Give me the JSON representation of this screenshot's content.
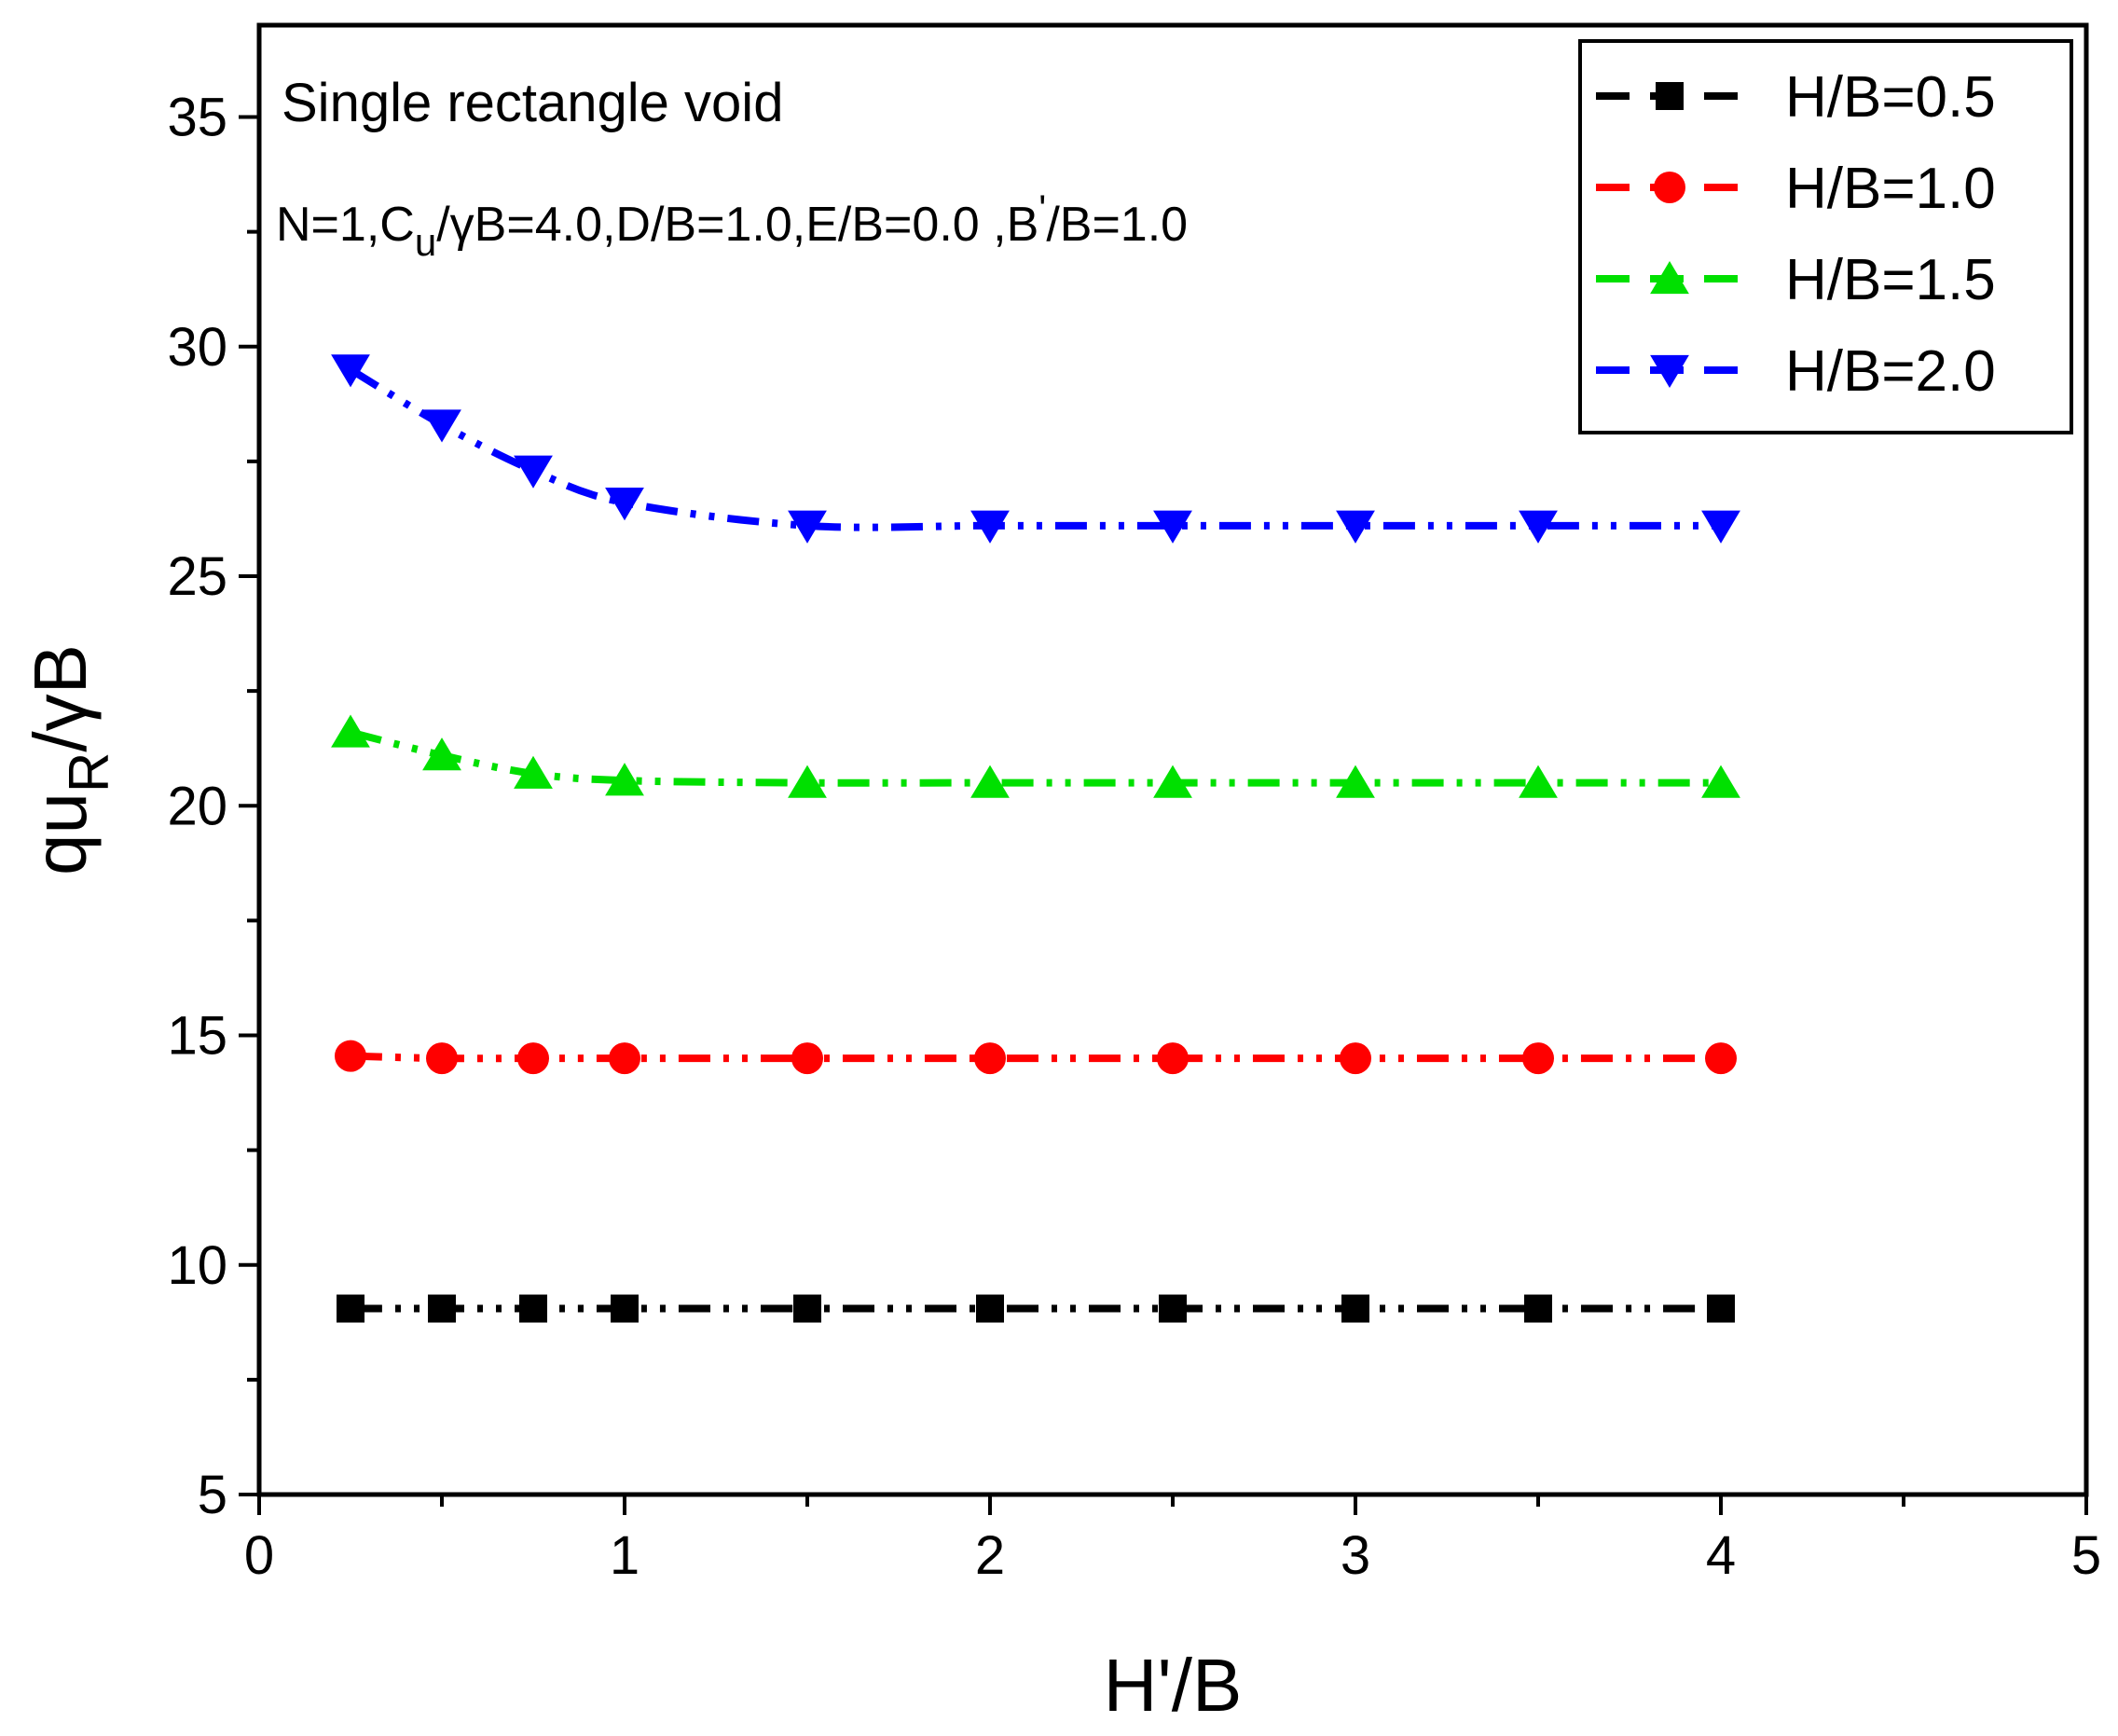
{
  "chart_data": {
    "type": "line",
    "title": "",
    "annotations": {
      "line1": "Single rectangle void",
      "line2": {
        "p1": "N=1,C",
        "sub1": "u",
        "p2": "/γB=4.0,D/B=1.0,E/B=0.0 ,B",
        "sup": "'",
        "p3": "/B=1.0"
      }
    },
    "xlabel": "H'/B",
    "ylabel": {
      "main": "qu",
      "sub": "R",
      "rest": "/γB"
    },
    "xlim": [
      0,
      5
    ],
    "ylim": [
      5,
      37
    ],
    "xticks": [
      "0",
      "1",
      "2",
      "3",
      "4",
      "5"
    ],
    "yticks": [
      "5",
      "10",
      "15",
      "20",
      "25",
      "30",
      "35"
    ],
    "x": [
      0.25,
      0.5,
      0.75,
      1.0,
      1.5,
      2.0,
      2.5,
      3.0,
      3.5,
      4.0
    ],
    "series": [
      {
        "name": "H/B=0.5",
        "color": "#000000",
        "marker": "square",
        "values": [
          9.05,
          9.05,
          9.05,
          9.05,
          9.05,
          9.05,
          9.05,
          9.05,
          9.05,
          9.05
        ]
      },
      {
        "name": "H/B=1.0",
        "color": "#ff0000",
        "marker": "circle",
        "values": [
          14.55,
          14.5,
          14.5,
          14.5,
          14.5,
          14.5,
          14.5,
          14.5,
          14.5,
          14.5
        ]
      },
      {
        "name": "H/B=1.5",
        "color": "#00e000",
        "marker": "triangle-up",
        "values": [
          21.6,
          21.1,
          20.7,
          20.55,
          20.5,
          20.5,
          20.5,
          20.5,
          20.5,
          20.5
        ]
      },
      {
        "name": "H/B=2.0",
        "color": "#0000ff",
        "marker": "triangle-down",
        "values": [
          29.5,
          28.3,
          27.3,
          26.6,
          26.1,
          26.1,
          26.1,
          26.1,
          26.1,
          26.1
        ]
      }
    ],
    "legend_position": "top-right"
  }
}
